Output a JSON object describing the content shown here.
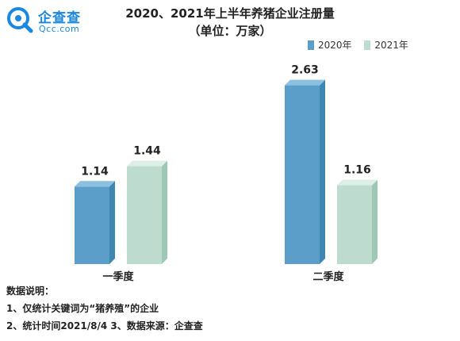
{
  "logo": {
    "name_cn": "企查查",
    "name_en": "Qcc.com"
  },
  "title": "2020、2021年上半年养猪企业注册量",
  "subtitle": "（单位：万家）",
  "colors": {
    "series_2020_front": "#5a9ec9",
    "series_2020_side": "#3f86b3",
    "series_2020_top": "#8cc0e0",
    "series_2021_front": "#bddccf",
    "series_2021_side": "#9ec8b6",
    "series_2021_top": "#dcefe6",
    "logo_blue": "#1a88e0"
  },
  "chart_data": {
    "type": "bar",
    "categories": [
      "一季度",
      "二季度"
    ],
    "series": [
      {
        "name": "2020年",
        "values": [
          1.14,
          2.63
        ]
      },
      {
        "name": "2021年",
        "values": [
          1.44,
          1.16
        ]
      }
    ],
    "data_labels": [
      [
        "1.14",
        "2.63"
      ],
      [
        "1.44",
        "1.16"
      ]
    ],
    "title": "2020、2021年上半年养猪企业注册量",
    "subtitle": "（单位：万家）",
    "xlabel": "",
    "ylabel": "",
    "legend_position": "top-right",
    "grid": false,
    "ylim": [
      0,
      2.8
    ]
  },
  "notes": {
    "heading": "数据说明：",
    "line1": "1、仅统计关键词为“猪养殖”的企业",
    "line2": "2、统计时间2021/8/4   3、数据来源：企查查"
  }
}
